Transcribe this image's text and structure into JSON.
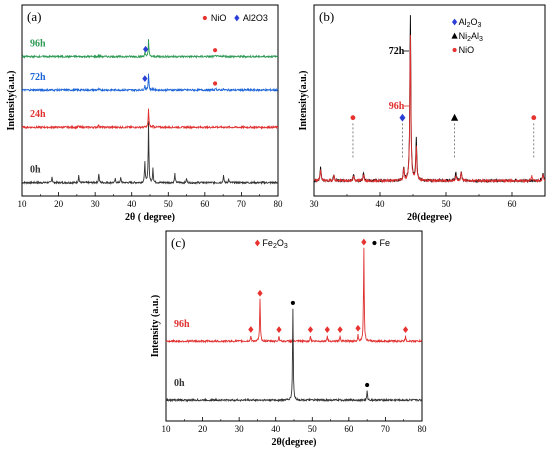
{
  "chart_data": [
    {
      "type": "line",
      "panel_label": "(a)",
      "xlabel": "2θ ( degree)",
      "ylabel": "Intensity(a.u.)",
      "xlim": [
        10,
        80
      ],
      "x_ticks": [
        "10",
        "20",
        "30",
        "40",
        "50",
        "60",
        "70",
        "80"
      ],
      "legend": [
        {
          "label": "NiO",
          "marker": "circle",
          "color": "#e8322f"
        },
        {
          "label": "Al2O3",
          "marker": "diamond",
          "color": "#2b3fd6"
        }
      ],
      "colors": {
        "0h": "#333333",
        "24h": "#e03030",
        "72h": "#1a63d8",
        "96h": "#2e9a55"
      },
      "series": [
        {
          "name": "0h",
          "peaks": [
            [
              18.2,
              0.1
            ],
            [
              25.5,
              0.12
            ],
            [
              31.0,
              0.15
            ],
            [
              35.5,
              0.06
            ],
            [
              37.0,
              0.08
            ],
            [
              43.6,
              0.35
            ],
            [
              44.6,
              1.0
            ],
            [
              45.8,
              0.25
            ],
            [
              51.8,
              0.15
            ],
            [
              55.0,
              0.07
            ],
            [
              65.1,
              0.12
            ],
            [
              66.5,
              0.06
            ]
          ]
        },
        {
          "name": "24h",
          "peaks": [
            [
              31.0,
              0.15
            ],
            [
              25.5,
              0.06
            ],
            [
              44.6,
              1.0
            ],
            [
              45.8,
              0.1
            ],
            [
              63.0,
              0.05
            ]
          ]
        },
        {
          "name": "72h",
          "peaks": [
            [
              31.0,
              0.06
            ],
            [
              36.0,
              0.03
            ],
            [
              43.6,
              0.3
            ],
            [
              44.6,
              1.0
            ],
            [
              45.8,
              0.1
            ],
            [
              63.0,
              0.12
            ],
            [
              65.0,
              0.06
            ]
          ]
        },
        {
          "name": "96h",
          "peaks": [
            [
              31.0,
              0.06
            ],
            [
              43.6,
              0.25
            ],
            [
              44.6,
              1.0
            ],
            [
              63.0,
              0.1
            ],
            [
              65.0,
              0.08
            ]
          ]
        }
      ],
      "markers": [
        {
          "series": "96h",
          "x": 43.8,
          "phase": "Al2O3"
        },
        {
          "series": "96h",
          "x": 62.8,
          "phase": "NiO"
        },
        {
          "series": "72h",
          "x": 43.6,
          "phase": "Al2O3"
        },
        {
          "series": "72h",
          "x": 62.8,
          "phase": "NiO"
        }
      ]
    },
    {
      "type": "line",
      "panel_label": "(b)",
      "xlabel": "2θ(degree)",
      "ylabel": "Intensity(a.u.)",
      "xlim": [
        30,
        65
      ],
      "x_ticks": [
        "30",
        "40",
        "50",
        "60"
      ],
      "legend": [
        {
          "label": "Al",
          "sub": "2",
          "label2": "O",
          "sub2": "3",
          "marker": "diamond",
          "color": "#2b3fd6"
        },
        {
          "label": "Ni",
          "sub": "2",
          "label2": "Al",
          "sub2": "3",
          "marker": "triangle",
          "color": "#000000"
        },
        {
          "label": "NiO",
          "marker": "circle",
          "color": "#e8322f"
        }
      ],
      "series": [
        {
          "name": "72h",
          "color": "#000000",
          "peaks": [
            [
              31.0,
              0.08
            ],
            [
              33.0,
              0.04
            ],
            [
              36.0,
              0.04
            ],
            [
              37.5,
              0.05
            ],
            [
              43.6,
              0.08
            ],
            [
              44.6,
              1.0
            ],
            [
              45.5,
              0.25
            ],
            [
              51.5,
              0.05
            ],
            [
              52.3,
              0.06
            ],
            [
              64.7,
              0.05
            ]
          ]
        },
        {
          "name": "96h",
          "color": "#e03030",
          "peaks": [
            [
              31.0,
              0.07
            ],
            [
              33.0,
              0.03
            ],
            [
              36.0,
              0.03
            ],
            [
              37.5,
              0.04
            ],
            [
              43.6,
              0.07
            ],
            [
              44.6,
              0.88
            ],
            [
              45.5,
              0.2
            ],
            [
              51.5,
              0.03
            ],
            [
              52.3,
              0.05
            ],
            [
              63.0,
              0.03
            ],
            [
              64.7,
              0.04
            ]
          ]
        }
      ],
      "markers": [
        {
          "x": 35.9,
          "phase": "NiO"
        },
        {
          "x": 43.4,
          "phase": "Al2O3"
        },
        {
          "x": 51.3,
          "phase": "Ni2Al3"
        },
        {
          "x": 63.3,
          "phase": "NiO"
        }
      ]
    },
    {
      "type": "line",
      "panel_label": "(c)",
      "xlabel": "2θ(degree)",
      "ylabel": "Intensity (a.u.)",
      "xlim": [
        10,
        80
      ],
      "x_ticks": [
        "10",
        "20",
        "30",
        "40",
        "50",
        "60",
        "70",
        "80"
      ],
      "legend": [
        {
          "label": "Fe",
          "sub": "2",
          "label2": "O",
          "sub2": "3",
          "marker": "diamond",
          "color": "#e8322f"
        },
        {
          "label": "Fe",
          "marker": "circle",
          "color": "#000000"
        }
      ],
      "series": [
        {
          "name": "96h",
          "color": "#e03030",
          "peaks": [
            [
              33.2,
              0.06
            ],
            [
              35.7,
              0.45
            ],
            [
              40.9,
              0.06
            ],
            [
              49.5,
              0.06
            ],
            [
              54.1,
              0.06
            ],
            [
              57.6,
              0.06
            ],
            [
              62.5,
              0.07
            ],
            [
              64.1,
              1.0
            ],
            [
              75.5,
              0.06
            ]
          ]
        },
        {
          "name": "0h",
          "color": "#333333",
          "peaks": [
            [
              44.7,
              1.0
            ],
            [
              65.0,
              0.1
            ]
          ]
        }
      ],
      "markers": [
        {
          "series": "96h",
          "x": 33.2,
          "phase": "Fe2O3"
        },
        {
          "series": "96h",
          "x": 35.7,
          "phase": "Fe2O3"
        },
        {
          "series": "96h",
          "x": 40.9,
          "phase": "Fe2O3"
        },
        {
          "series": "96h",
          "x": 49.5,
          "phase": "Fe2O3"
        },
        {
          "series": "96h",
          "x": 54.1,
          "phase": "Fe2O3"
        },
        {
          "series": "96h",
          "x": 57.6,
          "phase": "Fe2O3"
        },
        {
          "series": "96h",
          "x": 62.5,
          "phase": "Fe2O3"
        },
        {
          "series": "96h",
          "x": 64.1,
          "phase": "Fe2O3"
        },
        {
          "series": "96h",
          "x": 75.5,
          "phase": "Fe2O3"
        },
        {
          "series": "0h",
          "x": 44.7,
          "phase": "Fe"
        },
        {
          "series": "0h",
          "x": 65.0,
          "phase": "Fe"
        }
      ]
    }
  ]
}
